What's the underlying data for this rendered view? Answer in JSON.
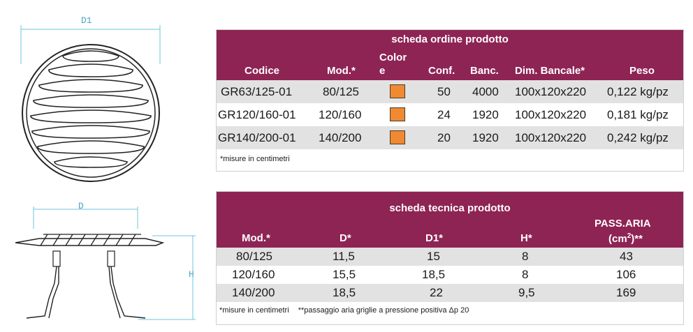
{
  "drawings": {
    "top_label": "D1",
    "side_label_d": "D",
    "side_label_h": "H"
  },
  "order_table": {
    "title": "scheda ordine prodotto",
    "headers": {
      "codice": "Codice",
      "mod": "Mod.*",
      "color_1": "Color",
      "color_2": "e",
      "conf": "Conf.",
      "banc": "Banc.",
      "dim": "Dim. Bancale*",
      "peso": "Peso"
    },
    "rows": [
      {
        "codice": "GR63/125-01",
        "mod": "80/125",
        "conf": "50",
        "banc": "4000",
        "dim": "100x120x220",
        "peso": "0,122 kg/pz"
      },
      {
        "codice": "GR120/160-01",
        "mod": "120/160",
        "conf": "24",
        "banc": "1920",
        "dim": "100x120x220",
        "peso": "0,181 kg/pz"
      },
      {
        "codice": "GR140/200-01",
        "mod": "140/200",
        "conf": "20",
        "banc": "1920",
        "dim": "100x120x220",
        "peso": "0,242 kg/pz"
      }
    ],
    "swatch_color": "#ef8a32",
    "note": "*misure in centimetri"
  },
  "tech_table": {
    "title": "scheda tecnica prodotto",
    "headers": {
      "mod": "Mod.*",
      "d": "D*",
      "d1": "D1*",
      "h": "H*",
      "pass_1": "PASS.ARIA",
      "pass_2a": "(cm",
      "pass_2sup": "2",
      "pass_2b": ")**"
    },
    "rows": [
      {
        "mod": "80/125",
        "d": "11,5",
        "d1": "15",
        "h": "8",
        "pass": "43"
      },
      {
        "mod": "120/160",
        "d": "15,5",
        "d1": "18,5",
        "h": "8",
        "pass": "106"
      },
      {
        "mod": "140/200",
        "d": "18,5",
        "d1": "22",
        "h": "9,5",
        "pass": "169"
      }
    ],
    "note_1": "*misure in centimetri",
    "note_2": "**passaggio aria griglie a pressione positiva Δp 20"
  },
  "colors": {
    "header_bg": "#8e2454",
    "row_grey": "#e2e2e2",
    "line": "#6cc6dc"
  }
}
